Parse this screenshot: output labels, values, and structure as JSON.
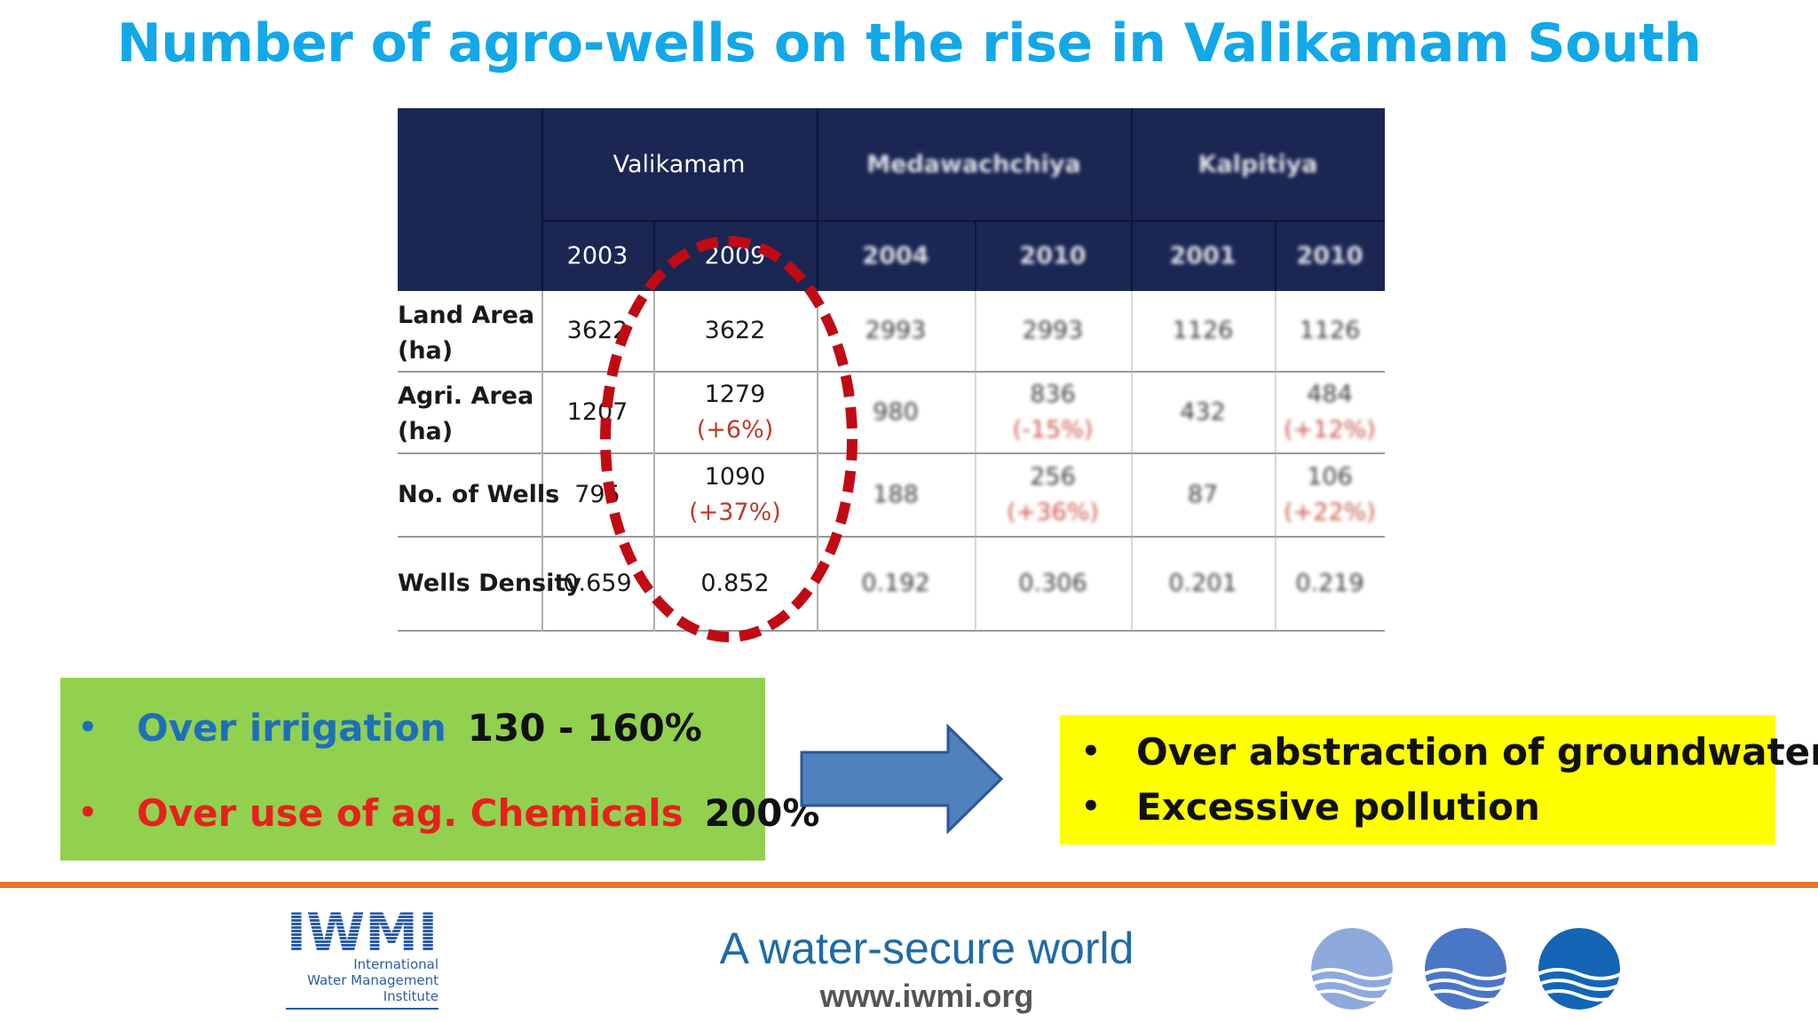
{
  "title": "Number of agro-wells on the rise in Valikamam South",
  "table": {
    "regions": [
      {
        "name": "Valikamam",
        "years": [
          "2003",
          "2009"
        ]
      },
      {
        "name": "Medawachchiya",
        "years": [
          "2004",
          "2010"
        ]
      },
      {
        "name": "Kalpitiya",
        "years": [
          "2001",
          "2010"
        ]
      }
    ],
    "rows": [
      {
        "label1": "Land Area",
        "label2": "(ha)",
        "cells": [
          {
            "v": "3622",
            "c": ""
          },
          {
            "v": "3622",
            "c": ""
          },
          {
            "v": "2993",
            "c": ""
          },
          {
            "v": "2993",
            "c": ""
          },
          {
            "v": "1126",
            "c": ""
          },
          {
            "v": "1126",
            "c": ""
          }
        ]
      },
      {
        "label1": "Agri. Area",
        "label2": "(ha)",
        "cells": [
          {
            "v": "1207",
            "c": ""
          },
          {
            "v": "1279",
            "c": "(+6%)"
          },
          {
            "v": "980",
            "c": ""
          },
          {
            "v": "836",
            "c": "(-15%)"
          },
          {
            "v": "432",
            "c": ""
          },
          {
            "v": "484",
            "c": "(+12%)"
          }
        ]
      },
      {
        "label1": "No. of Wells",
        "label2": "",
        "cells": [
          {
            "v": "795",
            "c": ""
          },
          {
            "v": "1090",
            "c": "(+37%)"
          },
          {
            "v": "188",
            "c": ""
          },
          {
            "v": "256",
            "c": "(+36%)"
          },
          {
            "v": "87",
            "c": ""
          },
          {
            "v": "106",
            "c": "(+22%)"
          }
        ]
      },
      {
        "label1": "Wells Density",
        "label2": "",
        "cells": [
          {
            "v": "0.659",
            "c": ""
          },
          {
            "v": "0.852",
            "c": ""
          },
          {
            "v": "0.192",
            "c": ""
          },
          {
            "v": "0.306",
            "c": ""
          },
          {
            "v": "0.201",
            "c": ""
          },
          {
            "v": "0.219",
            "c": ""
          }
        ]
      }
    ]
  },
  "green_box": {
    "line1": {
      "bullet": "•",
      "label": "Over irrigation",
      "value": "130 - 160%"
    },
    "line2": {
      "bullet": "•",
      "label": "Over use of ag. Chemicals",
      "value": "200%"
    }
  },
  "yellow_box": {
    "bullet": "•",
    "items": [
      "Over abstraction of groundwater",
      "Excessive pollution"
    ]
  },
  "footer": {
    "logo_letters": "IWMI",
    "logo_line1": "International",
    "logo_line2": "Water Management",
    "logo_line3": "Institute",
    "tagline": "A water-secure world",
    "url": "www.iwmi.org"
  },
  "colors": {
    "title": "#13a8e8",
    "table_header": "#1b2653",
    "green_box": "#92d050",
    "yellow_box": "#ffff00",
    "oval": "#c00b14",
    "blue_text": "#1f6fb8",
    "red_text": "#e8201c",
    "orange_rule": "#e8762b"
  }
}
